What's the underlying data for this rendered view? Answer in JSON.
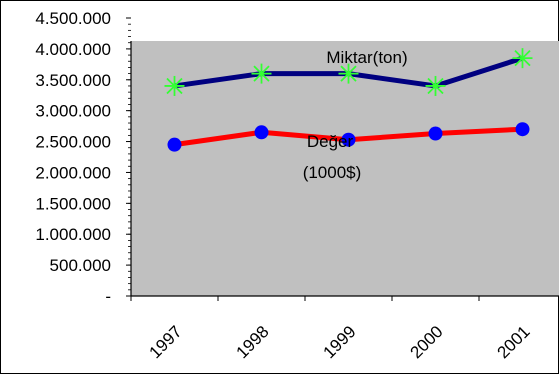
{
  "chart_data": {
    "type": "line",
    "categories": [
      "1997",
      "1998",
      "1999",
      "2000",
      "2001"
    ],
    "y_tick_labels": [
      "-",
      "500.000",
      "1.000.000",
      "1.500.000",
      "2.000.000",
      "2.500.000",
      "3.000.000",
      "3.500.000",
      "4.000.000",
      "4.500.000"
    ],
    "ylim": [
      0,
      4500000
    ],
    "ytick_step": 500000,
    "series": [
      {
        "name": "Miktar(ton)",
        "values": [
          3400000,
          3600000,
          3600000,
          3400000,
          3850000
        ],
        "line_color": "#000080",
        "marker": "asterisk",
        "marker_color": "#33ff33"
      },
      {
        "name": "Değer (1000$)",
        "name_lines": [
          "Değer",
          "(1000$)"
        ],
        "values": [
          2450000,
          2650000,
          2530000,
          2630000,
          2700000
        ],
        "line_color": "#ff0000",
        "marker": "circle",
        "marker_color": "#0000ff"
      }
    ],
    "plot_background": "#c0c0c0",
    "grid": false,
    "legend": "inline-labels"
  }
}
